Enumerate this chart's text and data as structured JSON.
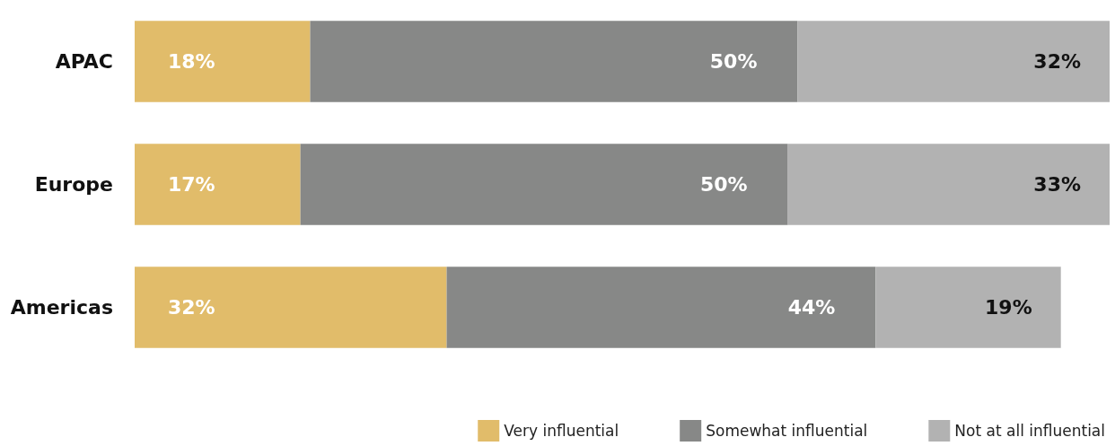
{
  "chart_data": {
    "type": "bar",
    "orientation": "horizontal",
    "stacked": true,
    "categories": [
      "APAC",
      "Europe",
      "Americas"
    ],
    "series": [
      {
        "name": "Very influential",
        "color": "#e1bc6a",
        "values": [
          18,
          17,
          32
        ],
        "value_labels": [
          "18%",
          "17%",
          "32%"
        ]
      },
      {
        "name": "Somewhat influential",
        "color": "#878887",
        "values": [
          50,
          50,
          44
        ],
        "value_labels": [
          "50%",
          "50%",
          "44%"
        ]
      },
      {
        "name": "Not at all influential",
        "color": "#b2b2b2",
        "values": [
          32,
          33,
          19
        ],
        "value_labels": [
          "32%",
          "33%",
          "19%"
        ]
      }
    ],
    "legend": "bottom right"
  }
}
